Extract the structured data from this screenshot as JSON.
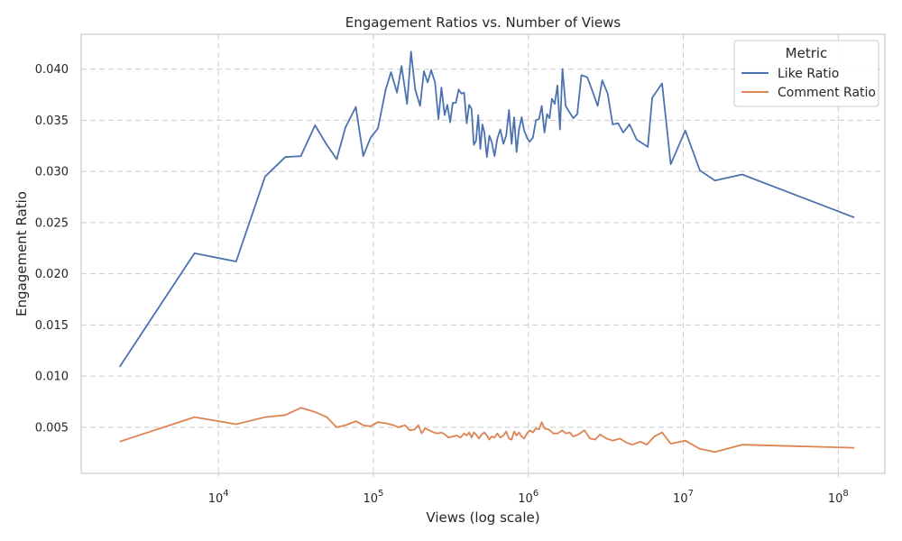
{
  "chart_data": {
    "type": "line",
    "title": "Engagement Ratios vs. Number of Views",
    "xlabel": "Views (log scale)",
    "ylabel": "Engagement Ratio",
    "x_scale": "log",
    "xlim": [
      1300,
      200000000
    ],
    "ylim": [
      0.0005,
      0.0434
    ],
    "x_tick_values": [
      10000,
      100000,
      1000000,
      10000000,
      100000000
    ],
    "x_tick_base": "10",
    "x_tick_exponents": [
      "4",
      "5",
      "6",
      "7",
      "8"
    ],
    "y_ticks": [
      0.005,
      0.01,
      0.015,
      0.02,
      0.025,
      0.03,
      0.035,
      0.04
    ],
    "y_tick_labels": [
      "0.005",
      "0.010",
      "0.015",
      "0.020",
      "0.025",
      "0.030",
      "0.035",
      "0.040"
    ],
    "grid": true,
    "legend": {
      "title": "Metric",
      "position": "top-right"
    },
    "series": [
      {
        "name": "Like Ratio",
        "color": "#4c72b0",
        "points": [
          [
            2300,
            0.0109
          ],
          [
            7000,
            0.022
          ],
          [
            13000,
            0.0212
          ],
          [
            20000,
            0.0295
          ],
          [
            27000,
            0.0314
          ],
          [
            34000,
            0.0315
          ],
          [
            42000,
            0.0345
          ],
          [
            50000,
            0.0326
          ],
          [
            58000,
            0.0312
          ],
          [
            66000,
            0.0343
          ],
          [
            77000,
            0.0363
          ],
          [
            86000,
            0.0315
          ],
          [
            96000,
            0.0333
          ],
          [
            107000,
            0.0342
          ],
          [
            120000,
            0.038
          ],
          [
            130000,
            0.0397
          ],
          [
            142000,
            0.0377
          ],
          [
            152000,
            0.0403
          ],
          [
            165000,
            0.0366
          ],
          [
            175000,
            0.0417
          ],
          [
            186000,
            0.038
          ],
          [
            200000,
            0.0364
          ],
          [
            212000,
            0.0398
          ],
          [
            224000,
            0.0387
          ],
          [
            236000,
            0.0399
          ],
          [
            250000,
            0.0387
          ],
          [
            263000,
            0.0351
          ],
          [
            275000,
            0.0382
          ],
          [
            288000,
            0.0355
          ],
          [
            300000,
            0.0365
          ],
          [
            313000,
            0.0348
          ],
          [
            325000,
            0.0367
          ],
          [
            340000,
            0.0367
          ],
          [
            355000,
            0.038
          ],
          [
            370000,
            0.0376
          ],
          [
            385000,
            0.0377
          ],
          [
            400000,
            0.0347
          ],
          [
            415000,
            0.0365
          ],
          [
            430000,
            0.0361
          ],
          [
            445000,
            0.0326
          ],
          [
            460000,
            0.033
          ],
          [
            475000,
            0.0355
          ],
          [
            490000,
            0.0322
          ],
          [
            505000,
            0.0346
          ],
          [
            520000,
            0.0338
          ],
          [
            540000,
            0.0314
          ],
          [
            560000,
            0.0335
          ],
          [
            580000,
            0.0329
          ],
          [
            605000,
            0.0315
          ],
          [
            630000,
            0.0332
          ],
          [
            660000,
            0.0341
          ],
          [
            690000,
            0.0327
          ],
          [
            720000,
            0.0335
          ],
          [
            750000,
            0.036
          ],
          [
            780000,
            0.0327
          ],
          [
            810000,
            0.0353
          ],
          [
            840000,
            0.0319
          ],
          [
            870000,
            0.0341
          ],
          [
            905000,
            0.0353
          ],
          [
            940000,
            0.034
          ],
          [
            980000,
            0.0333
          ],
          [
            1020000,
            0.0329
          ],
          [
            1070000,
            0.0333
          ],
          [
            1120000,
            0.035
          ],
          [
            1170000,
            0.0351
          ],
          [
            1220000,
            0.0364
          ],
          [
            1270000,
            0.0338
          ],
          [
            1320000,
            0.0356
          ],
          [
            1370000,
            0.0352
          ],
          [
            1420000,
            0.0371
          ],
          [
            1480000,
            0.0366
          ],
          [
            1540000,
            0.0384
          ],
          [
            1600000,
            0.0341
          ],
          [
            1660000,
            0.04
          ],
          [
            1740000,
            0.0364
          ],
          [
            1840000,
            0.0358
          ],
          [
            1950000,
            0.0352
          ],
          [
            2070000,
            0.0356
          ],
          [
            2200000,
            0.0394
          ],
          [
            2400000,
            0.0392
          ],
          [
            2600000,
            0.0378
          ],
          [
            2800000,
            0.0364
          ],
          [
            3000000,
            0.0389
          ],
          [
            3250000,
            0.0376
          ],
          [
            3500000,
            0.0346
          ],
          [
            3800000,
            0.0347
          ],
          [
            4100000,
            0.0338
          ],
          [
            4500000,
            0.0346
          ],
          [
            5000000,
            0.0331
          ],
          [
            5900000,
            0.0324
          ],
          [
            6300000,
            0.0372
          ],
          [
            7300000,
            0.0386
          ],
          [
            8300000,
            0.0307
          ],
          [
            10300000,
            0.034
          ],
          [
            12800000,
            0.0301
          ],
          [
            16000000,
            0.0291
          ],
          [
            24000000,
            0.0297
          ],
          [
            127000000,
            0.0255
          ]
        ]
      },
      {
        "name": "Comment Ratio",
        "color": "#dd8452",
        "points": [
          [
            2300,
            0.0036
          ],
          [
            7000,
            0.006
          ],
          [
            13000,
            0.0053
          ],
          [
            20000,
            0.006
          ],
          [
            27000,
            0.0062
          ],
          [
            34000,
            0.0069
          ],
          [
            42000,
            0.0065
          ],
          [
            50000,
            0.006
          ],
          [
            58000,
            0.005
          ],
          [
            66000,
            0.0052
          ],
          [
            77000,
            0.0056
          ],
          [
            86000,
            0.0052
          ],
          [
            96000,
            0.0051
          ],
          [
            107000,
            0.0055
          ],
          [
            120000,
            0.0054
          ],
          [
            135000,
            0.0052
          ],
          [
            145000,
            0.005
          ],
          [
            160000,
            0.0052
          ],
          [
            172000,
            0.0047
          ],
          [
            185000,
            0.0048
          ],
          [
            195000,
            0.0052
          ],
          [
            205000,
            0.0044
          ],
          [
            215000,
            0.0049
          ],
          [
            230000,
            0.0047
          ],
          [
            245000,
            0.0045
          ],
          [
            260000,
            0.0044
          ],
          [
            275000,
            0.0045
          ],
          [
            290000,
            0.0043
          ],
          [
            305000,
            0.004
          ],
          [
            325000,
            0.0041
          ],
          [
            345000,
            0.0042
          ],
          [
            365000,
            0.004
          ],
          [
            385000,
            0.0044
          ],
          [
            400000,
            0.0042
          ],
          [
            415000,
            0.0045
          ],
          [
            430000,
            0.004
          ],
          [
            445000,
            0.0045
          ],
          [
            460000,
            0.0043
          ],
          [
            480000,
            0.0039
          ],
          [
            500000,
            0.0043
          ],
          [
            520000,
            0.0045
          ],
          [
            540000,
            0.0042
          ],
          [
            560000,
            0.0038
          ],
          [
            580000,
            0.0041
          ],
          [
            605000,
            0.004
          ],
          [
            630000,
            0.0044
          ],
          [
            660000,
            0.004
          ],
          [
            690000,
            0.0042
          ],
          [
            720000,
            0.0046
          ],
          [
            750000,
            0.0039
          ],
          [
            780000,
            0.0038
          ],
          [
            810000,
            0.0046
          ],
          [
            840000,
            0.0042
          ],
          [
            870000,
            0.0045
          ],
          [
            905000,
            0.0041
          ],
          [
            940000,
            0.0039
          ],
          [
            980000,
            0.0044
          ],
          [
            1020000,
            0.0047
          ],
          [
            1070000,
            0.0045
          ],
          [
            1120000,
            0.0049
          ],
          [
            1170000,
            0.0048
          ],
          [
            1220000,
            0.0055
          ],
          [
            1270000,
            0.0049
          ],
          [
            1350000,
            0.0048
          ],
          [
            1450000,
            0.0044
          ],
          [
            1550000,
            0.0044
          ],
          [
            1650000,
            0.0047
          ],
          [
            1750000,
            0.0044
          ],
          [
            1850000,
            0.0045
          ],
          [
            1950000,
            0.0041
          ],
          [
            2100000,
            0.0043
          ],
          [
            2300000,
            0.0047
          ],
          [
            2500000,
            0.0039
          ],
          [
            2700000,
            0.0038
          ],
          [
            2900000,
            0.0043
          ],
          [
            3200000,
            0.0039
          ],
          [
            3500000,
            0.0037
          ],
          [
            3900000,
            0.0039
          ],
          [
            4300000,
            0.0035
          ],
          [
            4700000,
            0.0033
          ],
          [
            5300000,
            0.0036
          ],
          [
            5800000,
            0.0033
          ],
          [
            6500000,
            0.0041
          ],
          [
            7300000,
            0.0045
          ],
          [
            8300000,
            0.0034
          ],
          [
            10300000,
            0.0037
          ],
          [
            12800000,
            0.0029
          ],
          [
            16000000,
            0.0026
          ],
          [
            24000000,
            0.0033
          ],
          [
            127000000,
            0.003
          ]
        ]
      }
    ]
  }
}
